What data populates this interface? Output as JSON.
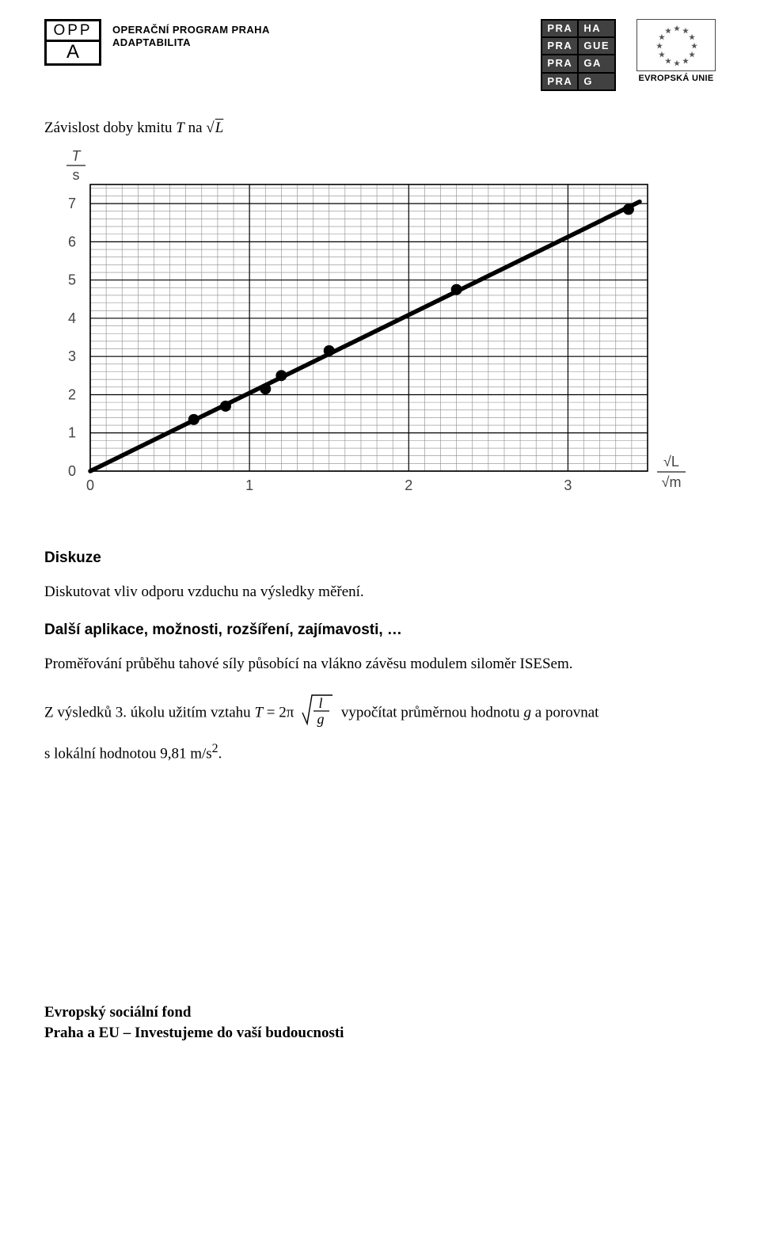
{
  "header": {
    "oppa": {
      "line1": "OPP",
      "line2": "A",
      "title1": "OPERAČNÍ PROGRAM PRAHA",
      "title2": "ADAPTABILITA"
    },
    "praha": {
      "cells": [
        "PRA",
        "HA",
        "PRA",
        "GUE",
        "PRA",
        "GA",
        "PRA",
        "G"
      ]
    },
    "eu": {
      "label": "EVROPSKÁ UNIE"
    }
  },
  "title": {
    "prefix": "Závislost doby kmitu ",
    "tvar": "T",
    "mid": " na ",
    "sqrt_arg": "L"
  },
  "chart": {
    "type": "scatter-with-line",
    "y_label_top": "T",
    "y_label_bottom": "s",
    "x_label_top": "√L",
    "x_label_bottom": "√m",
    "y_ticks": [
      0,
      1,
      2,
      3,
      4,
      5,
      6,
      7
    ],
    "x_ticks": [
      0,
      1,
      2,
      3
    ],
    "xlim": [
      0,
      3.5
    ],
    "ylim": [
      0,
      7.5
    ],
    "grid_major_step_y": 1,
    "grid_minor_per_major_y": 5,
    "grid_major_step_x": 1,
    "grid_minor_per_major_x": 10,
    "line": {
      "x1": 0,
      "y1": 0,
      "x2": 3.45,
      "y2": 7.05,
      "color": "#000000",
      "width": 5.5
    },
    "points": [
      {
        "x": 0.65,
        "y": 1.35
      },
      {
        "x": 0.85,
        "y": 1.7
      },
      {
        "x": 1.1,
        "y": 2.15
      },
      {
        "x": 1.2,
        "y": 2.5
      },
      {
        "x": 1.5,
        "y": 3.15
      },
      {
        "x": 2.3,
        "y": 4.75
      },
      {
        "x": 3.38,
        "y": 6.85
      }
    ],
    "point_color": "#000000",
    "point_radius": 7,
    "background_color": "#ffffff",
    "grid_color_minor": "#8a8a8a",
    "grid_color_major": "#000000",
    "tick_font_family": "Arial, Helvetica, sans-serif",
    "tick_font_size": 18,
    "axis_label_font_size": 18
  },
  "diskuze": {
    "heading": "Diskuze",
    "text": "Diskutovat vliv odporu vzduchu na výsledky měření."
  },
  "dalsi": {
    "heading": "Další aplikace, možnosti, rozšíření, zajímavosti, …",
    "text": "Proměřování průběhu tahové síly působící na vlákno závěsu  modulem siloměr  ISESem."
  },
  "formula": {
    "pre": "Z výsledků 3. úkolu užitím vztahu ",
    "T": "T",
    "eq": " = 2π",
    "frac_top": "l",
    "frac_bot": "g",
    "post": " vypočítat průměrnou hodnotu ",
    "gvar": "g",
    "post2": " a porovnat",
    "line2_pre": "s lokální hodnotou 9,81 m/s",
    "exp": "2",
    "line2_post": "."
  },
  "footer": {
    "l1": "Evropský sociální fond",
    "l2": "Praha a EU – Investujeme do vaší budoucnosti"
  }
}
